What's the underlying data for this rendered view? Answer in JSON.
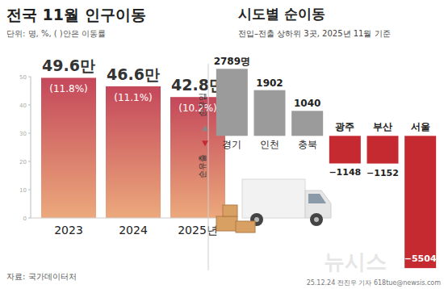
{
  "chart_data": [
    {
      "type": "bar",
      "title": "전국 11월 인구이동",
      "subtitle": "단위: 명, %, ( )안은 이동률",
      "categories": [
        "2023",
        "2024",
        "2025년"
      ],
      "values": [
        49.6,
        46.6,
        42.8
      ],
      "value_labels": [
        "49.6만",
        "46.6만",
        "42.8만"
      ],
      "rates": [
        11.8,
        11.1,
        10.2
      ],
      "rate_labels": [
        "(11.8%)",
        "(11.1%)",
        "(10.2%)"
      ],
      "color": "#c4475a",
      "ylim": [
        0,
        50
      ],
      "yticks": [
        0,
        10,
        20,
        30,
        40,
        50
      ],
      "grid": false,
      "data_labels": true,
      "source": "자료: 국가데이터처"
    },
    {
      "type": "bar",
      "title": "시도별 순이동",
      "subtitle": "전입–전출 상하위 3곳, 2025년 11월 기준",
      "categories": [
        "경기",
        "인천",
        "충북",
        "광주",
        "부산",
        "서울"
      ],
      "values": [
        2789,
        1902,
        1040,
        -1148,
        -1152,
        -5504
      ],
      "value_labels": [
        "2789명",
        "1902",
        "1040",
        "−1148",
        "−1152",
        "−5504"
      ],
      "colors": [
        "#9b9b9b",
        "#9b9b9b",
        "#9b9b9b",
        "#c62a31",
        "#c62a31",
        "#c62a31"
      ],
      "ylim": [
        -5600,
        3000
      ],
      "tick_labels": false,
      "grid": false,
      "data_labels": true,
      "annotations": [
        "순유입",
        "순유출"
      ]
    }
  ],
  "credit": "25.12.24 전진우 기자 618tue@newsis.com",
  "watermark": "뉴시스"
}
